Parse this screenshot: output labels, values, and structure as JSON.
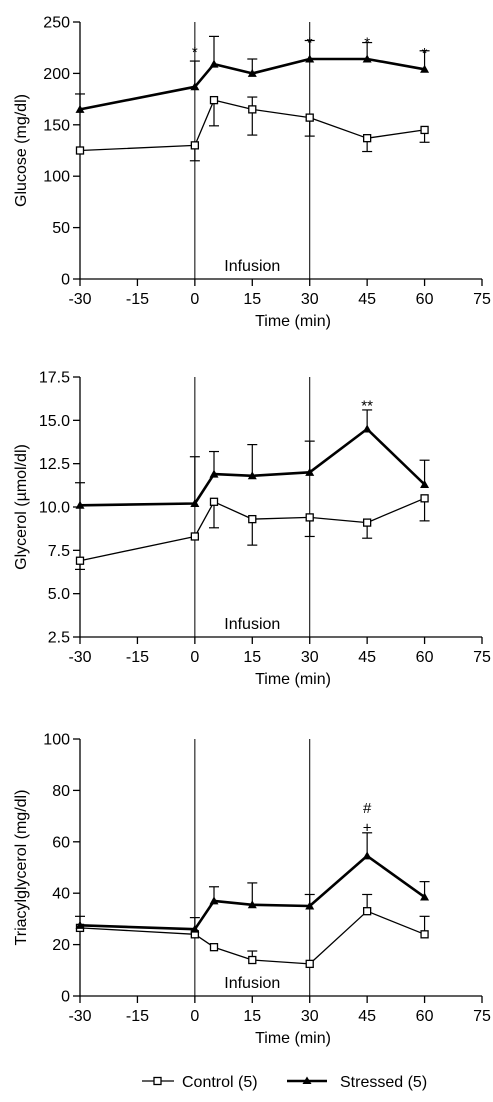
{
  "legend": {
    "control_label": "Control (5)",
    "stressed_label": "Stressed (5)"
  },
  "chart_data": [
    {
      "type": "line",
      "xlabel": "Time (min)",
      "ylabel": "Glucose (mg/dl)",
      "xlim": [
        -30,
        75
      ],
      "ylim": [
        0,
        250
      ],
      "xticks": [
        -30,
        -15,
        0,
        15,
        30,
        45,
        60,
        75
      ],
      "xtick_labels": [
        "-30",
        "-15",
        "0",
        "15",
        "30",
        "45",
        "60",
        "75"
      ],
      "yticks": [
        0,
        50,
        100,
        150,
        200,
        250
      ],
      "ytick_labels": [
        "0",
        "50",
        "100",
        "150",
        "200",
        "250"
      ],
      "infusion_lines": [
        0,
        30
      ],
      "infusion_label": "Infusion",
      "series": [
        {
          "name": "Control (5)",
          "marker": "open-square",
          "x": [
            -30,
            0,
            5,
            15,
            30,
            45,
            60
          ],
          "y": [
            125,
            130,
            174,
            165,
            157,
            137,
            145
          ],
          "err_up": [
            0,
            0,
            0,
            12,
            0,
            0,
            0
          ],
          "err_down": [
            0,
            15,
            25,
            25,
            18,
            13,
            12
          ]
        },
        {
          "name": "Stressed (5)",
          "marker": "filled-triangle",
          "x": [
            -30,
            0,
            5,
            15,
            30,
            45,
            60
          ],
          "y": [
            165,
            187,
            209,
            200,
            214,
            214,
            204
          ],
          "err_up": [
            15,
            25,
            27,
            14,
            18,
            16,
            18
          ],
          "err_down": [
            0,
            0,
            0,
            0,
            0,
            0,
            0
          ]
        }
      ],
      "annotations": [
        {
          "x": 0,
          "y": 222,
          "text": "*"
        },
        {
          "x": 30,
          "y": 231,
          "text": "*"
        },
        {
          "x": 45,
          "y": 231,
          "text": "*"
        },
        {
          "x": 60,
          "y": 221,
          "text": "*"
        }
      ]
    },
    {
      "type": "line",
      "xlabel": "Time (min)",
      "ylabel": "Glycerol (µmol/dl)",
      "xlim": [
        -30,
        75
      ],
      "ylim": [
        2.5,
        17.5
      ],
      "xticks": [
        -30,
        -15,
        0,
        15,
        30,
        45,
        60,
        75
      ],
      "xtick_labels": [
        "-30",
        "-15",
        "0",
        "15",
        "30",
        "45",
        "60",
        "75"
      ],
      "yticks": [
        2.5,
        5.0,
        7.5,
        10.0,
        12.5,
        15.0,
        17.5
      ],
      "ytick_labels": [
        "2.5",
        "5.0",
        "7.5",
        "10.0",
        "12.5",
        "15.0",
        "17.5"
      ],
      "infusion_lines": [
        0,
        30
      ],
      "infusion_label": "Infusion",
      "series": [
        {
          "name": "Control (5)",
          "marker": "open-square",
          "x": [
            -30,
            0,
            5,
            15,
            30,
            45,
            60
          ],
          "y": [
            6.9,
            8.3,
            10.3,
            9.3,
            9.4,
            9.1,
            10.5
          ],
          "err_up": [
            0,
            0,
            0,
            0,
            0,
            0,
            0
          ],
          "err_down": [
            0.5,
            0,
            1.5,
            1.5,
            1.1,
            0.9,
            1.3
          ]
        },
        {
          "name": "Stressed (5)",
          "marker": "filled-triangle",
          "x": [
            -30,
            0,
            5,
            15,
            30,
            45,
            60
          ],
          "y": [
            10.1,
            10.2,
            11.9,
            11.8,
            12.0,
            14.5,
            11.3
          ],
          "err_up": [
            1.3,
            2.7,
            1.3,
            1.8,
            1.8,
            1.1,
            1.4
          ],
          "err_down": [
            0,
            0,
            0,
            0,
            0,
            0,
            0
          ]
        }
      ],
      "annotations": [
        {
          "x": 45,
          "y": 15.9,
          "text": "**"
        }
      ]
    },
    {
      "type": "line",
      "xlabel": "Time (min)",
      "ylabel": "Triacylglycerol (mg/dl)",
      "xlim": [
        -30,
        75
      ],
      "ylim": [
        0,
        100
      ],
      "xticks": [
        -30,
        -15,
        0,
        15,
        30,
        45,
        60,
        75
      ],
      "xtick_labels": [
        "-30",
        "-15",
        "0",
        "15",
        "30",
        "45",
        "60",
        "75"
      ],
      "yticks": [
        0,
        20,
        40,
        60,
        80,
        100
      ],
      "ytick_labels": [
        "0",
        "20",
        "40",
        "60",
        "80",
        "100"
      ],
      "infusion_lines": [
        0,
        30
      ],
      "infusion_label": "Infusion",
      "series": [
        {
          "name": "Control (5)",
          "marker": "open-square",
          "x": [
            -30,
            0,
            5,
            15,
            30,
            45,
            60
          ],
          "y": [
            26.5,
            24,
            19,
            14,
            12.5,
            33,
            24
          ],
          "err_up": [
            0,
            0,
            0,
            3.5,
            0,
            6.5,
            7
          ],
          "err_down": [
            0,
            0,
            0,
            0,
            0,
            0,
            0
          ]
        },
        {
          "name": "Stressed (5)",
          "marker": "filled-triangle",
          "x": [
            -30,
            0,
            5,
            15,
            30,
            45,
            60
          ],
          "y": [
            27.5,
            26,
            37,
            35.5,
            35,
            54.5,
            38.5
          ],
          "err_up": [
            3.5,
            4.5,
            5.5,
            8.5,
            4.5,
            9,
            6
          ],
          "err_down": [
            0,
            0,
            0,
            0,
            0,
            0,
            0
          ]
        }
      ],
      "annotations": [
        {
          "x": 45,
          "y": 66,
          "text": "+"
        },
        {
          "x": 45,
          "y": 73.5,
          "text": "#"
        }
      ]
    }
  ]
}
